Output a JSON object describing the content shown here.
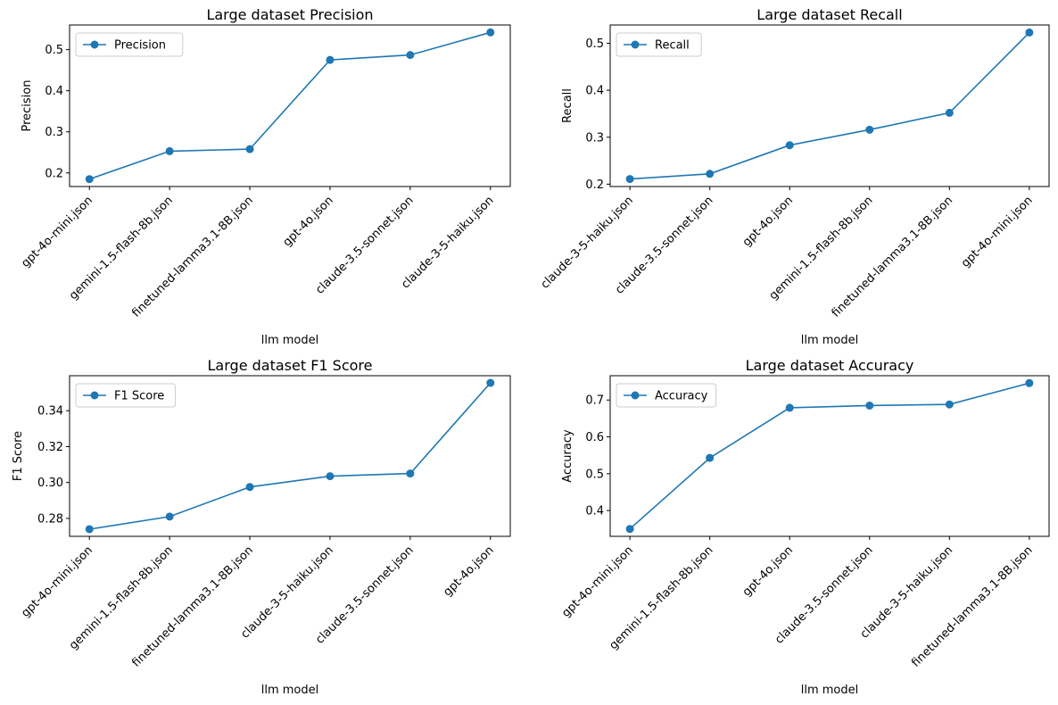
{
  "series_color": "#1f77b4",
  "chart_data": [
    {
      "type": "line",
      "title": "Large dataset Precision",
      "xlabel": "llm model",
      "ylabel": "Precision",
      "categories": [
        "gpt-4o-mini.json",
        "gemini-1.5-flash-8b.json",
        "finetuned-lamma3.1-8B.json",
        "gpt-4o.json",
        "claude-3.5-sonnet.json",
        "claude-3-5-haiku.json"
      ],
      "series": [
        {
          "name": "Precision",
          "values": [
            0.185,
            0.253,
            0.258,
            0.475,
            0.487,
            0.542
          ]
        }
      ],
      "ylim": [
        0.167,
        0.56
      ],
      "yticks": [
        0.2,
        0.3,
        0.4,
        0.5
      ],
      "ytick_decimals": 1,
      "grid": false,
      "legend_position": "upper left"
    },
    {
      "type": "line",
      "title": "Large dataset Recall",
      "xlabel": "llm model",
      "ylabel": "Recall",
      "categories": [
        "claude-3-5-haiku.json",
        "claude-3.5-sonnet.json",
        "gpt-4o.json",
        "gemini-1.5-flash-8b.json",
        "finetuned-lamma3.1-8B.json",
        "gpt-4o-mini.json"
      ],
      "series": [
        {
          "name": "Recall",
          "values": [
            0.211,
            0.222,
            0.283,
            0.316,
            0.352,
            0.523
          ]
        }
      ],
      "ylim": [
        0.195,
        0.539
      ],
      "yticks": [
        0.2,
        0.3,
        0.4,
        0.5
      ],
      "ytick_decimals": 1,
      "grid": false,
      "legend_position": "upper left"
    },
    {
      "type": "line",
      "title": "Large dataset F1 Score",
      "xlabel": "llm model",
      "ylabel": "F1 Score",
      "categories": [
        "gpt-4o-mini.json",
        "gemini-1.5-flash-8b.json",
        "finetuned-lamma3.1-8B.json",
        "claude-3-5-haiku.json",
        "claude-3.5-sonnet.json",
        "gpt-4o.json"
      ],
      "series": [
        {
          "name": "F1 Score",
          "values": [
            0.274,
            0.281,
            0.2975,
            0.3035,
            0.305,
            0.3555
          ]
        }
      ],
      "ylim": [
        0.27,
        0.3595
      ],
      "yticks": [
        0.28,
        0.3,
        0.32,
        0.34
      ],
      "ytick_decimals": 2,
      "grid": false,
      "legend_position": "upper left"
    },
    {
      "type": "line",
      "title": "Large dataset Accuracy",
      "xlabel": "llm model",
      "ylabel": "Accuracy",
      "categories": [
        "gpt-4o-mini.json",
        "gemini-1.5-flash-8b.json",
        "gpt-4o.json",
        "claude-3.5-sonnet.json",
        "claude-3-5-haiku.json",
        "finetuned-lamma3.1-8B.json"
      ],
      "series": [
        {
          "name": "Accuracy",
          "values": [
            0.35,
            0.543,
            0.679,
            0.685,
            0.688,
            0.746
          ]
        }
      ],
      "ylim": [
        0.33,
        0.766
      ],
      "yticks": [
        0.4,
        0.5,
        0.6,
        0.7
      ],
      "ytick_decimals": 1,
      "grid": false,
      "legend_position": "upper left"
    }
  ]
}
